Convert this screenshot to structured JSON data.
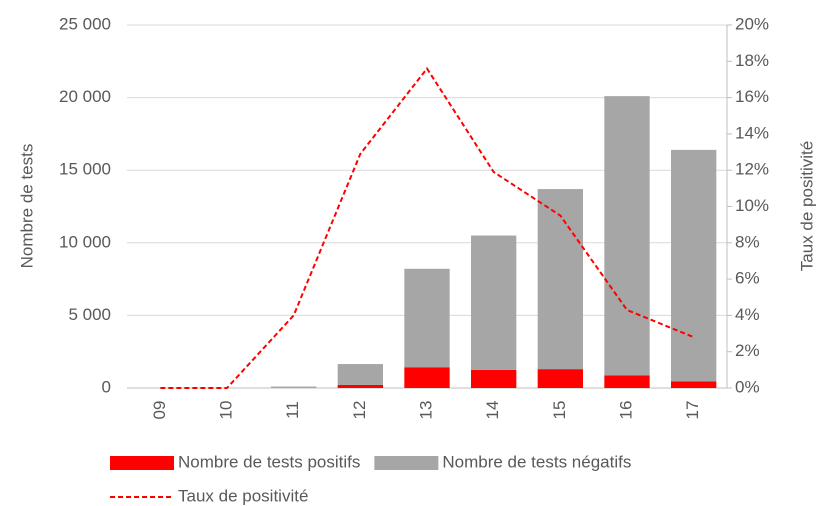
{
  "chart_data": {
    "type": "bar-line",
    "categories": [
      "09",
      "10",
      "11",
      "12",
      "13",
      "14",
      "15",
      "16",
      "17"
    ],
    "series": [
      {
        "name": "Nombre de tests positifs",
        "color": "#ff0000",
        "stack": true,
        "values": [
          0,
          0,
          4,
          210,
          1430,
          1250,
          1300,
          860,
          460
        ]
      },
      {
        "name": "Nombre de tests négatifs",
        "color": "#a6a6a6",
        "stack": true,
        "values": [
          0,
          0,
          96,
          1440,
          6780,
          9250,
          12400,
          19240,
          15940
        ]
      },
      {
        "name": "Taux de positivité",
        "color": "#ff0000",
        "axis": "y2",
        "dashed": true,
        "values": [
          0,
          0,
          4.0,
          12.9,
          17.6,
          11.9,
          9.5,
          4.3,
          2.8
        ]
      }
    ],
    "ylabel": "Nombre de tests",
    "y2label": "Taux de positivité",
    "ylim": [
      0,
      25000
    ],
    "yticks": [
      0,
      {
        "value": 5000,
        "label": "5 000"
      },
      {
        "value": 10000,
        "label": "10 000"
      },
      {
        "value": 15000,
        "label": "15 000"
      },
      {
        "value": 20000,
        "label": "20 000"
      },
      {
        "value": 25000,
        "label": "25 000"
      }
    ],
    "y2lim": [
      0,
      20
    ],
    "y2ticks": [
      {
        "value": 0,
        "label": "0%"
      },
      {
        "value": 2,
        "label": "2%"
      },
      {
        "value": 4,
        "label": "4%"
      },
      {
        "value": 6,
        "label": "6%"
      },
      {
        "value": 8,
        "label": "8%"
      },
      {
        "value": 10,
        "label": "10%"
      },
      {
        "value": 12,
        "label": "12%"
      },
      {
        "value": 14,
        "label": "14%"
      },
      {
        "value": 16,
        "label": "16%"
      },
      {
        "value": 18,
        "label": "18%"
      },
      {
        "value": 20,
        "label": "20%"
      }
    ],
    "grid": true
  }
}
